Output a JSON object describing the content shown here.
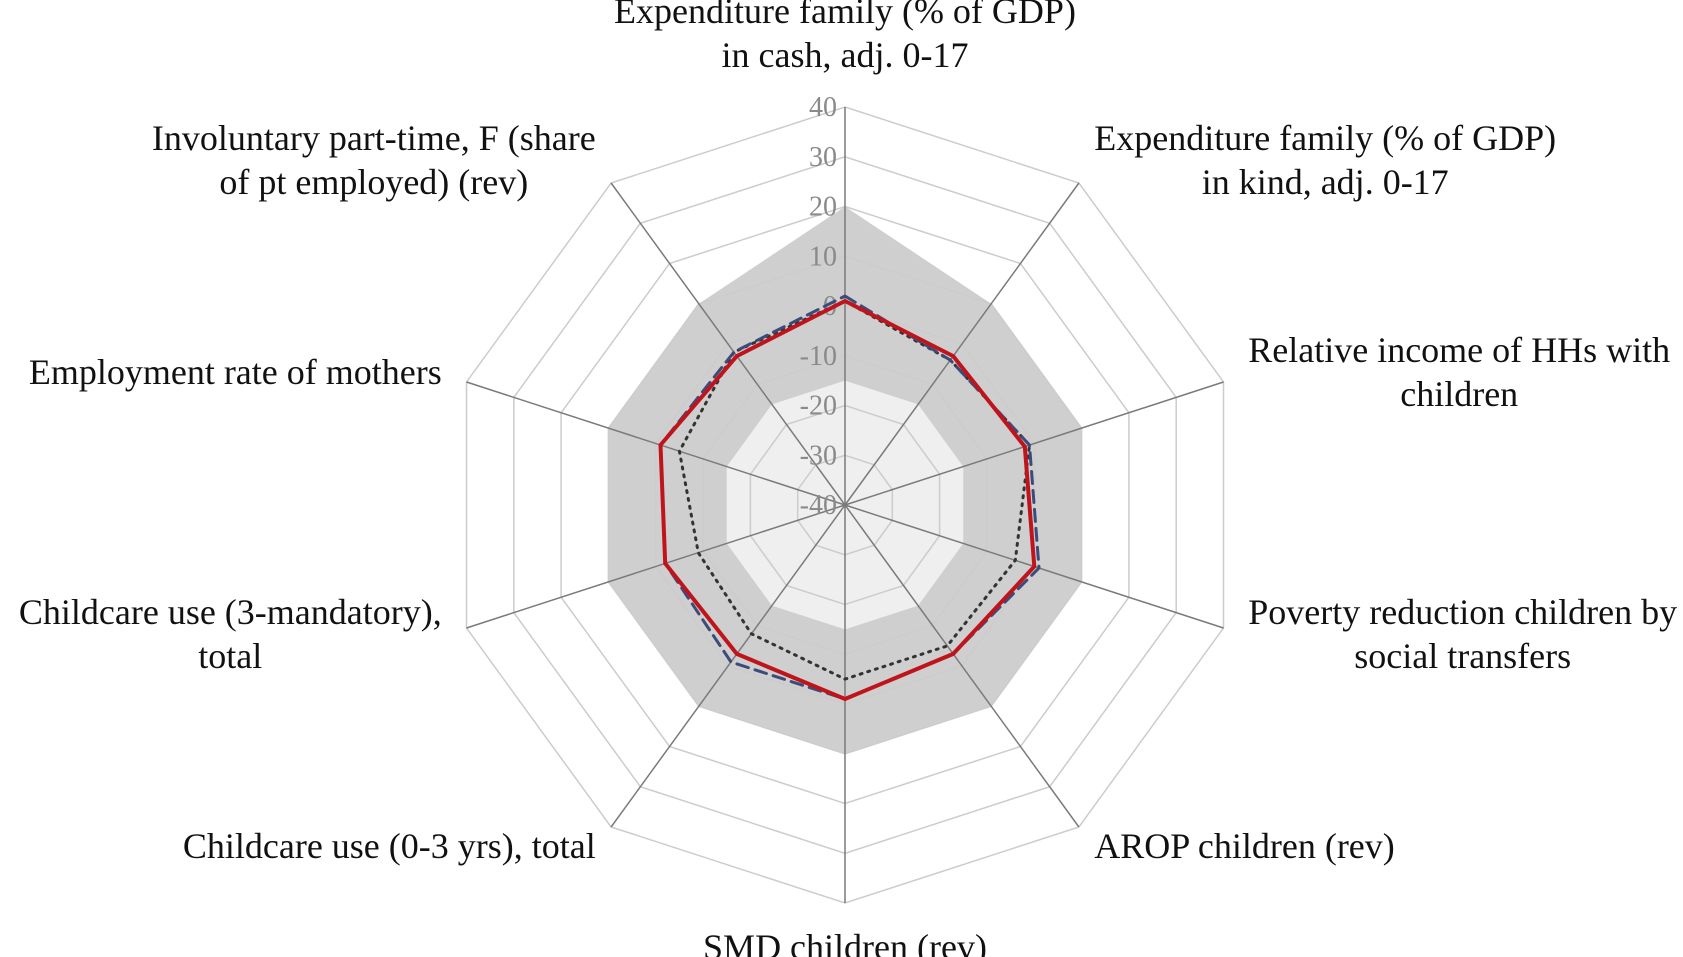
{
  "chart_data": {
    "type": "radar",
    "axes": [
      [
        "Expenditure family (% of GDP)",
        "in cash, adj. 0-17"
      ],
      [
        "Expenditure family (% of GDP)",
        "in kind, adj. 0-17"
      ],
      [
        "Relative income of HHs with",
        "children"
      ],
      [
        "Poverty reduction children by",
        "social transfers"
      ],
      [
        "AROP children (rev)"
      ],
      [
        "SMD children (rev)"
      ],
      [
        "Childcare use (0-3 yrs), total"
      ],
      [
        "Childcare use (3-mandatory),",
        "total"
      ],
      [
        "Employment rate of mothers"
      ],
      [
        "Involuntary part-time, F (share",
        "of pt employed) (rev)"
      ]
    ],
    "r_ticks": [
      "40",
      "30",
      "20",
      "10",
      "0",
      "-10",
      "-20",
      "-30",
      "-40"
    ],
    "rlim": [
      -40,
      40
    ],
    "grid": true,
    "legend": "none",
    "bands": {
      "outer_gray": [
        20,
        10,
        10,
        10,
        10,
        10,
        10,
        10,
        10,
        10
      ],
      "inner_light": [
        -15,
        -15,
        -15,
        -15,
        -15,
        -15,
        -15,
        -15,
        -15,
        -15
      ]
    },
    "series": [
      {
        "style": "solid",
        "color": "#c0141c",
        "values": [
          1,
          -3,
          -2,
          0,
          -3,
          -1,
          -3,
          -2,
          -1,
          -3
        ]
      },
      {
        "style": "dashed",
        "color": "#3b4c7a",
        "values": [
          2,
          -4,
          -1,
          1,
          -3,
          -1,
          -1,
          -2,
          -1,
          -2
        ]
      },
      {
        "style": "dotted",
        "color": "#333333",
        "values": [
          1,
          -4,
          -1,
          -4,
          -5,
          -5,
          -8,
          -9,
          -5,
          -2
        ]
      }
    ],
    "colors": {
      "outer_band": "#cfcfcf",
      "inner_band": "#efefef",
      "grid": "#cccccc",
      "spoke": "#7a7a7a",
      "tick": "#8a8a8a"
    }
  }
}
